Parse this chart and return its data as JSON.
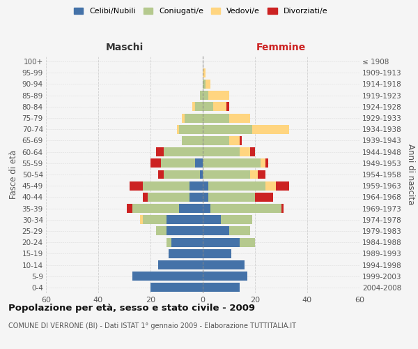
{
  "age_groups": [
    "0-4",
    "5-9",
    "10-14",
    "15-19",
    "20-24",
    "25-29",
    "30-34",
    "35-39",
    "40-44",
    "45-49",
    "50-54",
    "55-59",
    "60-64",
    "65-69",
    "70-74",
    "75-79",
    "80-84",
    "85-89",
    "90-94",
    "95-99",
    "100+"
  ],
  "birth_years": [
    "2004-2008",
    "1999-2003",
    "1994-1998",
    "1989-1993",
    "1984-1988",
    "1979-1983",
    "1974-1978",
    "1969-1973",
    "1964-1968",
    "1959-1963",
    "1954-1958",
    "1949-1953",
    "1944-1948",
    "1939-1943",
    "1934-1938",
    "1929-1933",
    "1924-1928",
    "1919-1923",
    "1914-1918",
    "1909-1913",
    "≤ 1908"
  ],
  "maschi": {
    "celibi": [
      20,
      27,
      17,
      13,
      12,
      14,
      14,
      9,
      5,
      5,
      1,
      3,
      0,
      0,
      0,
      0,
      0,
      0,
      0,
      0,
      0
    ],
    "coniugati": [
      0,
      0,
      0,
      0,
      2,
      4,
      9,
      18,
      16,
      18,
      14,
      13,
      15,
      8,
      9,
      7,
      3,
      1,
      0,
      0,
      0
    ],
    "vedovi": [
      0,
      0,
      0,
      0,
      0,
      0,
      1,
      0,
      0,
      0,
      0,
      0,
      0,
      0,
      1,
      1,
      1,
      0,
      0,
      0,
      0
    ],
    "divorziati": [
      0,
      0,
      0,
      0,
      0,
      0,
      0,
      2,
      2,
      5,
      2,
      4,
      3,
      0,
      0,
      0,
      0,
      0,
      0,
      0,
      0
    ]
  },
  "femmine": {
    "nubili": [
      14,
      17,
      16,
      11,
      14,
      10,
      7,
      3,
      2,
      2,
      0,
      0,
      0,
      0,
      0,
      0,
      0,
      0,
      0,
      0,
      0
    ],
    "coniugate": [
      0,
      0,
      0,
      0,
      6,
      8,
      12,
      27,
      18,
      22,
      18,
      22,
      14,
      10,
      19,
      10,
      4,
      2,
      1,
      0,
      0
    ],
    "vedove": [
      0,
      0,
      0,
      0,
      0,
      0,
      0,
      0,
      0,
      4,
      3,
      2,
      4,
      4,
      14,
      8,
      5,
      8,
      2,
      1,
      0
    ],
    "divorziate": [
      0,
      0,
      0,
      0,
      0,
      0,
      0,
      1,
      7,
      5,
      3,
      1,
      2,
      1,
      0,
      0,
      1,
      0,
      0,
      0,
      0
    ]
  },
  "colors": {
    "celibi": "#4472a8",
    "coniugati": "#b5c98e",
    "vedovi": "#ffd580",
    "divorziati": "#cc2222"
  },
  "title": "Popolazione per età, sesso e stato civile - 2009",
  "subtitle": "COMUNE DI VERRONE (BI) - Dati ISTAT 1° gennaio 2009 - Elaborazione TUTTITALIA.IT",
  "xlabel_left": "Maschi",
  "xlabel_right": "Femmine",
  "ylabel_left": "Fasce di età",
  "ylabel_right": "Anni di nascita",
  "xlim": 60,
  "bg_color": "#f5f5f5",
  "grid_color": "#cccccc"
}
